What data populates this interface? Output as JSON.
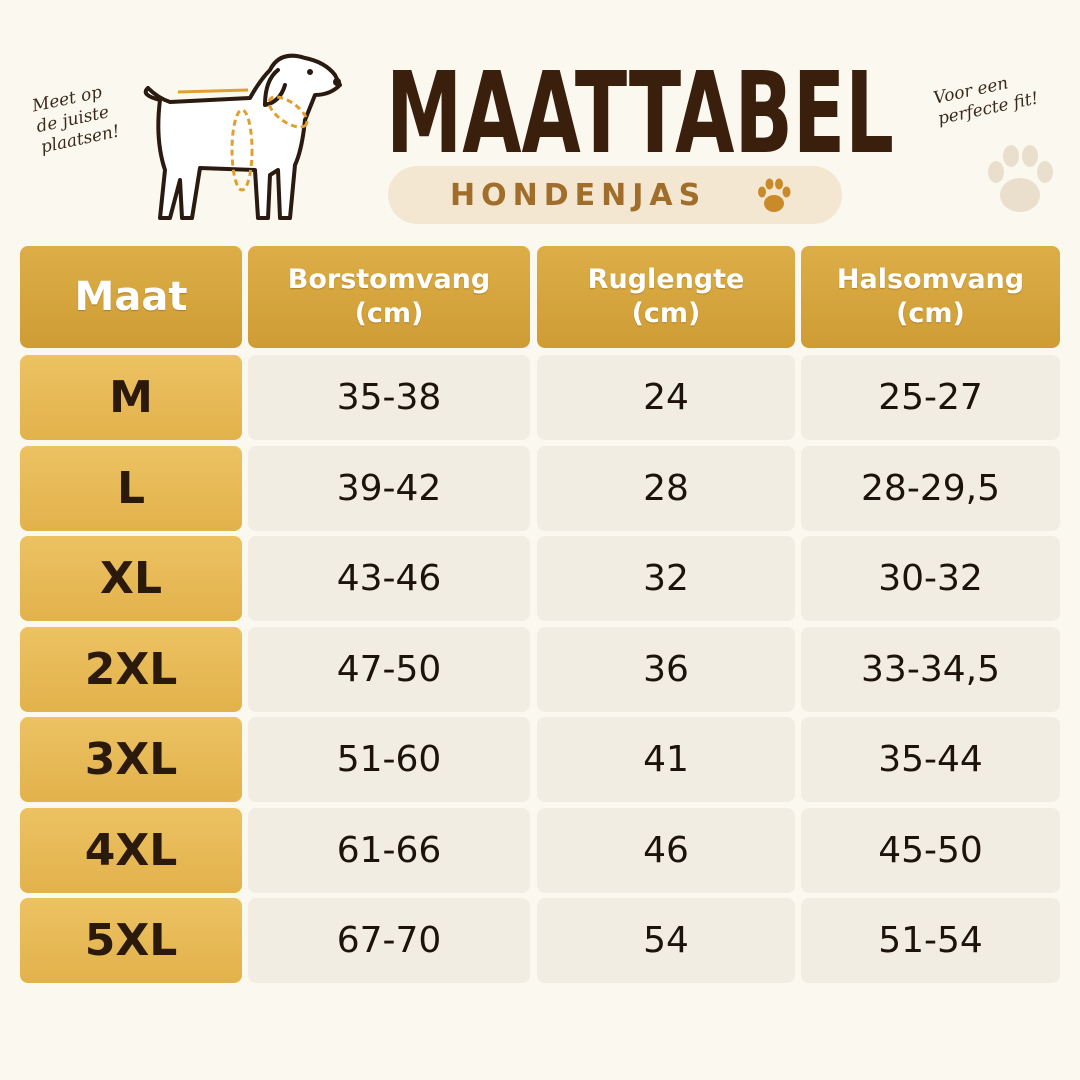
{
  "header": {
    "title": "MAATTABEL",
    "subtitle": "HONDENJAS",
    "note_left": [
      "Meet op",
      "de juiste",
      "plaatsen!"
    ],
    "note_right": [
      "Voor een",
      "perfecte fit!"
    ]
  },
  "table": {
    "columns": [
      {
        "name": "Maat"
      },
      {
        "name": "Borstomvang",
        "unit": "(cm)"
      },
      {
        "name": "Ruglengte",
        "unit": "(cm)"
      },
      {
        "name": "Halsomvang",
        "unit": "(cm)"
      }
    ],
    "rows": [
      [
        "M",
        "35-38",
        "24",
        "25-27"
      ],
      [
        "L",
        "39-42",
        "28",
        "28-29,5"
      ],
      [
        "XL",
        "43-46",
        "32",
        "30-32"
      ],
      [
        "2XL",
        "47-50",
        "36",
        "33-34,5"
      ],
      [
        "3XL",
        "51-60",
        "41",
        "35-44"
      ],
      [
        "4XL",
        "61-66",
        "46",
        "45-50"
      ],
      [
        "5XL",
        "67-70",
        "54",
        "51-54"
      ]
    ]
  }
}
